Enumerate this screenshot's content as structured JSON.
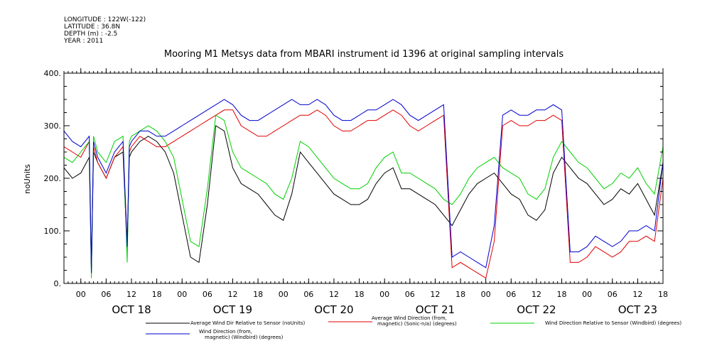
{
  "meta": {
    "longitude": "LONGITUDE : 122W(-122)",
    "latitude": "LATITUDE : 36.8N",
    "depth": "DEPTH (m) : -2.5",
    "year": "YEAR : 2011"
  },
  "chart_data": {
    "type": "line",
    "title": "Mooring M1 Metsys data from MBARI instrument id 1396 at original sampling intervals",
    "ylabel": "noUnits",
    "xlabel": "",
    "ylim": [
      0,
      400
    ],
    "yticks": [
      "0.",
      "100.",
      "200.",
      "300.",
      "400."
    ],
    "xlim_hours": [
      0,
      142
    ],
    "x_hour_ticks": [
      "00",
      "06",
      "12",
      "18",
      "00",
      "06",
      "12",
      "18",
      "00",
      "06",
      "12",
      "18",
      "00",
      "06",
      "12",
      "18",
      "00",
      "06",
      "12",
      "18",
      "00",
      "06",
      "12",
      "18"
    ],
    "x_day_labels": [
      "OCT 18",
      "OCT 19",
      "OCT 20",
      "OCT 21",
      "OCT 22",
      "OCT 23"
    ],
    "grid": false,
    "legend_position": "bottom",
    "series": [
      {
        "name": "Average Wind Dir Relative to Sensor (noUnits)",
        "color": "#000000",
        "x": [
          0,
          2,
          4,
          6,
          6.5,
          7,
          8,
          10,
          12,
          14,
          15,
          15.5,
          16,
          18,
          20,
          22,
          24,
          26,
          28,
          30,
          32,
          34,
          36,
          38,
          40,
          42,
          44,
          46,
          48,
          50,
          52,
          54,
          56,
          58,
          60,
          62,
          64,
          66,
          68,
          70,
          72,
          74,
          76,
          78,
          80,
          82,
          84,
          86,
          88,
          90,
          92,
          94,
          96,
          98,
          100,
          102,
          104,
          106,
          108,
          110,
          112,
          114,
          116,
          118,
          120,
          122,
          124,
          126,
          128,
          130,
          132,
          134,
          136,
          138,
          140,
          142
        ],
        "y": [
          220,
          200,
          210,
          240,
          20,
          250,
          230,
          200,
          240,
          250,
          60,
          240,
          250,
          270,
          280,
          270,
          250,
          210,
          130,
          50,
          40,
          150,
          300,
          290,
          220,
          190,
          180,
          170,
          150,
          130,
          120,
          170,
          250,
          230,
          210,
          190,
          170,
          160,
          150,
          150,
          160,
          190,
          210,
          220,
          180,
          180,
          170,
          160,
          150,
          130,
          110,
          140,
          170,
          190,
          200,
          210,
          190,
          170,
          160,
          130,
          120,
          140,
          210,
          240,
          220,
          200,
          190,
          170,
          150,
          160,
          180,
          170,
          190,
          160,
          130,
          230
        ]
      },
      {
        "name": "Average Wind Direction (from, magnetic) (Sonic-n/a) (degrees)",
        "color": "#e00000",
        "x": [
          0,
          2,
          4,
          6,
          6.5,
          7,
          8,
          10,
          12,
          14,
          15,
          15.5,
          16,
          18,
          20,
          22,
          24,
          26,
          28,
          30,
          32,
          34,
          36,
          38,
          40,
          42,
          44,
          46,
          48,
          50,
          52,
          54,
          56,
          58,
          60,
          62,
          64,
          66,
          68,
          70,
          72,
          74,
          76,
          78,
          80,
          82,
          84,
          86,
          88,
          90,
          92,
          94,
          96,
          98,
          100,
          102,
          104,
          106,
          108,
          110,
          112,
          114,
          116,
          118,
          120,
          122,
          124,
          126,
          128,
          130,
          132,
          134,
          136,
          138,
          140,
          142
        ],
        "y": [
          260,
          250,
          240,
          270,
          30,
          260,
          230,
          200,
          240,
          260,
          80,
          250,
          260,
          280,
          270,
          260,
          260,
          270,
          280,
          290,
          300,
          310,
          320,
          330,
          330,
          300,
          290,
          280,
          280,
          290,
          300,
          310,
          320,
          320,
          330,
          320,
          300,
          290,
          290,
          300,
          310,
          310,
          320,
          330,
          320,
          300,
          290,
          300,
          310,
          320,
          30,
          40,
          30,
          20,
          10,
          80,
          300,
          310,
          300,
          300,
          310,
          310,
          320,
          310,
          40,
          40,
          50,
          70,
          60,
          50,
          60,
          80,
          80,
          90,
          80,
          200
        ]
      },
      {
        "name": "Wind Direction Relative to Sensor (Windbird) (degrees)",
        "color": "#00d000",
        "x": [
          0,
          2,
          4,
          6,
          6.5,
          7,
          8,
          10,
          12,
          14,
          15,
          15.5,
          16,
          18,
          20,
          22,
          24,
          26,
          28,
          30,
          32,
          34,
          36,
          38,
          40,
          42,
          44,
          46,
          48,
          50,
          52,
          54,
          56,
          58,
          60,
          62,
          64,
          66,
          68,
          70,
          72,
          74,
          76,
          78,
          80,
          82,
          84,
          86,
          88,
          90,
          92,
          94,
          96,
          98,
          100,
          102,
          104,
          106,
          108,
          110,
          112,
          114,
          116,
          118,
          120,
          122,
          124,
          126,
          128,
          130,
          132,
          134,
          136,
          138,
          140,
          142
        ],
        "y": [
          240,
          230,
          250,
          270,
          10,
          280,
          250,
          230,
          270,
          280,
          40,
          270,
          280,
          290,
          300,
          290,
          270,
          240,
          160,
          80,
          70,
          180,
          320,
          310,
          250,
          220,
          210,
          200,
          190,
          170,
          160,
          200,
          270,
          260,
          240,
          220,
          200,
          190,
          180,
          180,
          190,
          220,
          240,
          250,
          210,
          210,
          200,
          190,
          180,
          160,
          150,
          170,
          200,
          220,
          230,
          240,
          220,
          210,
          200,
          170,
          160,
          180,
          240,
          270,
          250,
          230,
          220,
          200,
          180,
          190,
          210,
          200,
          220,
          190,
          170,
          260
        ]
      },
      {
        "name": "Wind Direction (from, magnetic) (Windbird) (degrees)",
        "color": "#0000d0",
        "x": [
          0,
          2,
          4,
          6,
          6.5,
          7,
          8,
          10,
          12,
          14,
          15,
          15.5,
          16,
          18,
          20,
          22,
          24,
          26,
          28,
          30,
          32,
          34,
          36,
          38,
          40,
          42,
          44,
          46,
          48,
          50,
          52,
          54,
          56,
          58,
          60,
          62,
          64,
          66,
          68,
          70,
          72,
          74,
          76,
          78,
          80,
          82,
          84,
          86,
          88,
          90,
          92,
          94,
          96,
          98,
          100,
          102,
          104,
          106,
          108,
          110,
          112,
          114,
          116,
          118,
          120,
          122,
          124,
          126,
          128,
          130,
          132,
          134,
          136,
          138,
          140,
          142
        ],
        "y": [
          290,
          270,
          260,
          280,
          20,
          270,
          240,
          210,
          250,
          270,
          70,
          260,
          270,
          290,
          290,
          280,
          280,
          290,
          300,
          310,
          320,
          330,
          340,
          350,
          340,
          320,
          310,
          310,
          320,
          330,
          340,
          350,
          340,
          340,
          350,
          340,
          320,
          310,
          310,
          320,
          330,
          330,
          340,
          350,
          340,
          320,
          310,
          320,
          330,
          340,
          50,
          60,
          50,
          40,
          30,
          110,
          320,
          330,
          320,
          320,
          330,
          330,
          340,
          330,
          60,
          60,
          70,
          90,
          80,
          70,
          80,
          100,
          100,
          110,
          100,
          230
        ]
      }
    ]
  }
}
